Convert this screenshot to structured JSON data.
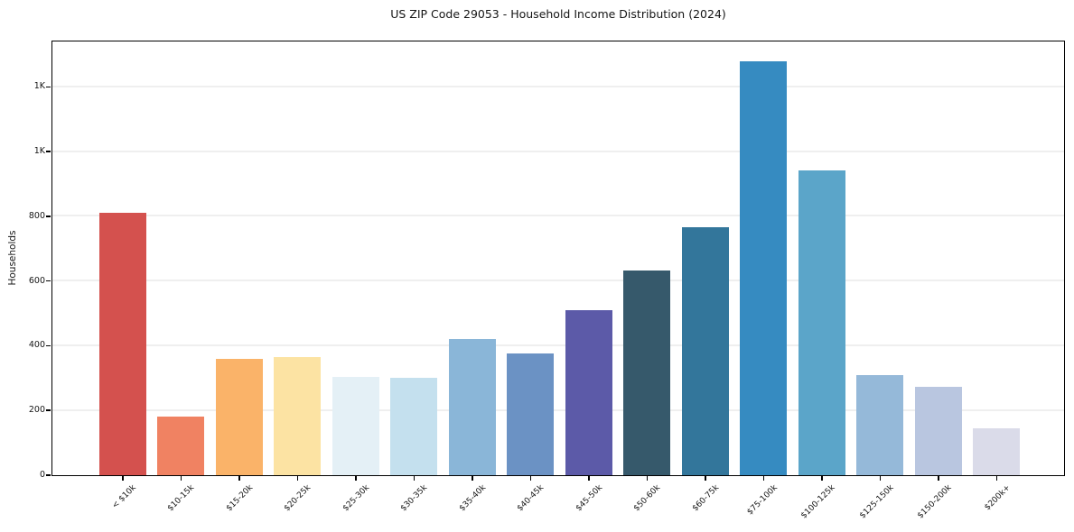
{
  "accent_colors": {
    "spine": "#000000",
    "grid": "#efefef",
    "text": "#151515",
    "background": "#ffffff"
  },
  "chart_data": {
    "type": "bar",
    "title": "US ZIP Code 29053 - Household Income Distribution (2024)",
    "xlabel": "",
    "ylabel": "Households",
    "categories": [
      "< $10k",
      "$10-15k",
      "$15-20k",
      "$20-25k",
      "$25-30k",
      "$30-35k",
      "$35-40k",
      "$40-45k",
      "$45-50k",
      "$50-60k",
      "$60-75k",
      "$75-100k",
      "$100-125k",
      "$125-150k",
      "$150-200k",
      "$200k+"
    ],
    "values": [
      810,
      179,
      359,
      364,
      302,
      300,
      418,
      374,
      508,
      631,
      765,
      1278,
      940,
      309,
      273,
      143
    ],
    "bar_colors": [
      "#d4514e",
      "#f08262",
      "#fab369",
      "#fce3a3",
      "#e4f0f6",
      "#c4e0ee",
      "#8ab6d8",
      "#6b92c4",
      "#5c5aa8",
      "#36596b",
      "#33769b",
      "#368bc1",
      "#5ba5c9",
      "#95b9d9",
      "#b9c6e0",
      "#dadbe9"
    ],
    "ylim": [
      0,
      1340
    ],
    "yticks": [
      {
        "value": 0,
        "label": "0"
      },
      {
        "value": 200,
        "label": "200"
      },
      {
        "value": 400,
        "label": "400"
      },
      {
        "value": 600,
        "label": "600"
      },
      {
        "value": 800,
        "label": "800"
      },
      {
        "value": 1000,
        "label": "1K"
      },
      {
        "value": 1200,
        "label": "1K"
      }
    ],
    "grid": "horizontal",
    "legend": "none"
  }
}
